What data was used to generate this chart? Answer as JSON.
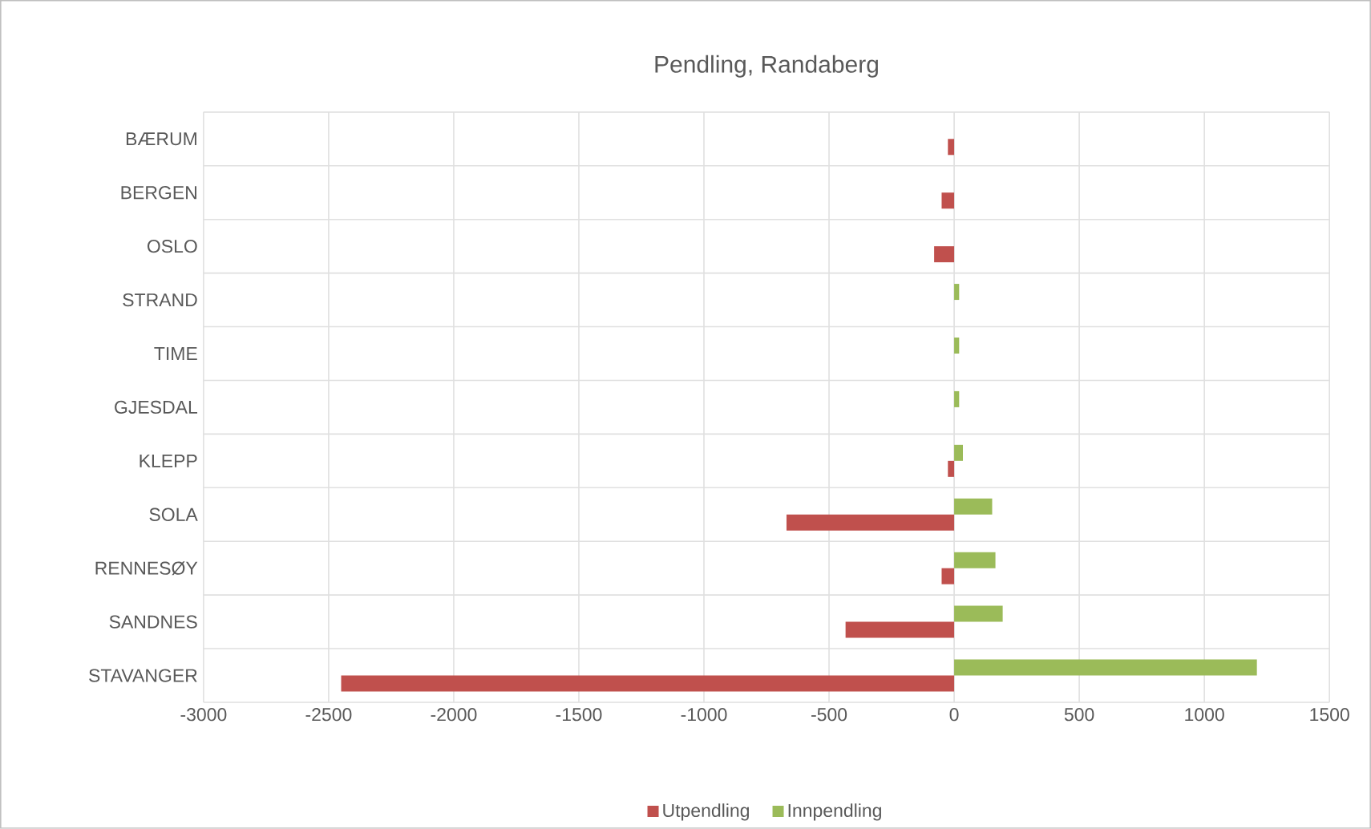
{
  "chart_data": {
    "type": "bar",
    "orientation": "horizontal",
    "title": "Pendling, Randaberg",
    "categories": [
      "BÆRUM",
      "BERGEN",
      "OSLO",
      "STRAND",
      "TIME",
      "GJESDAL",
      "KLEPP",
      "SOLA",
      "RENNESØY",
      "SANDNES",
      "STAVANGER"
    ],
    "series": [
      {
        "name": "Utpendling",
        "color": "#c0504d",
        "values": [
          -25,
          -50,
          -80,
          null,
          null,
          null,
          -25,
          -670,
          -50,
          -434,
          -2450
        ]
      },
      {
        "name": "Innpendling",
        "color": "#9bbb59",
        "values": [
          null,
          null,
          null,
          20,
          20,
          20,
          35,
          152,
          165,
          194,
          1210
        ]
      }
    ],
    "xlim": [
      -3000,
      1500
    ],
    "xticks": [
      -3000,
      -2500,
      -2000,
      -1500,
      -1000,
      -500,
      0,
      500,
      1000,
      1500
    ],
    "grid": true,
    "legend": "bottom"
  }
}
